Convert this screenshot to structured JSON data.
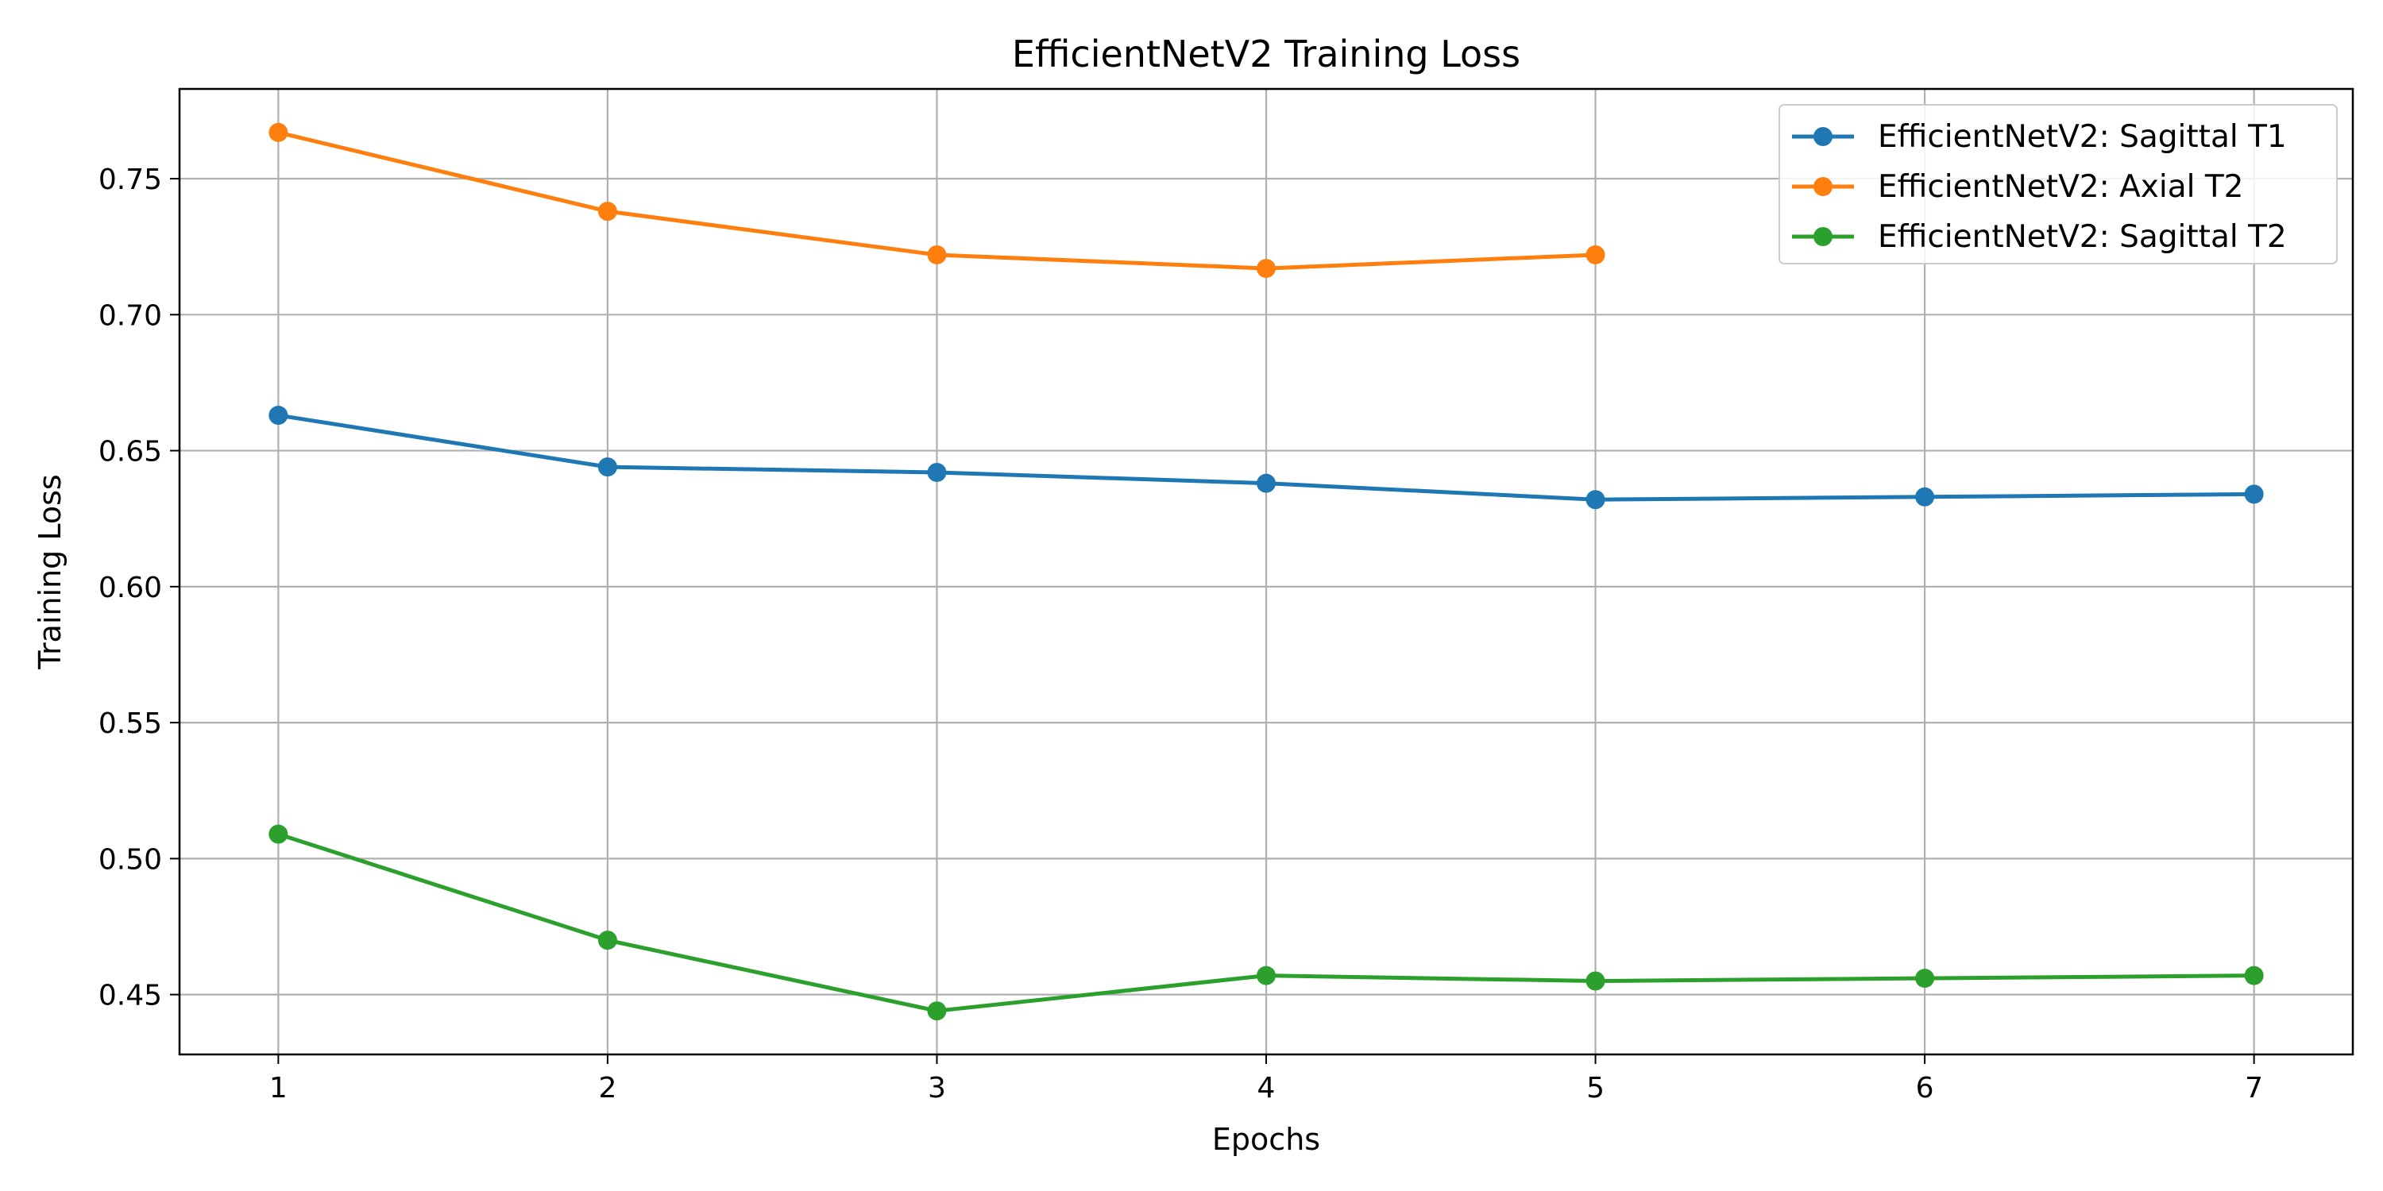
{
  "chart_data": {
    "type": "line",
    "title": "EfficientNetV2 Training Loss",
    "xlabel": "Epochs",
    "ylabel": "Training Loss",
    "xlim": [
      0.7,
      7.3
    ],
    "ylim": [
      0.428,
      0.783
    ],
    "xticks": [
      1,
      2,
      3,
      4,
      5,
      6,
      7
    ],
    "yticks": [
      0.45,
      0.5,
      0.55,
      0.6,
      0.65,
      0.7,
      0.75
    ],
    "ytick_labels": [
      "0.45",
      "0.50",
      "0.55",
      "0.60",
      "0.65",
      "0.70",
      "0.75"
    ],
    "grid": true,
    "legend_position": "top-right",
    "series": [
      {
        "name": "EfficientNetV2: Sagittal T1",
        "color": "#1f77b4",
        "x": [
          1,
          2,
          3,
          4,
          5,
          6,
          7
        ],
        "values": [
          0.663,
          0.644,
          0.642,
          0.638,
          0.632,
          0.633,
          0.634
        ]
      },
      {
        "name": "EfficientNetV2: Axial T2",
        "color": "#ff7f0e",
        "x": [
          1,
          2,
          3,
          4,
          5
        ],
        "values": [
          0.767,
          0.738,
          0.722,
          0.717,
          0.722
        ]
      },
      {
        "name": "EfficientNetV2: Sagittal T2",
        "color": "#2ca02c",
        "x": [
          1,
          2,
          3,
          4,
          5,
          6,
          7
        ],
        "values": [
          0.509,
          0.47,
          0.444,
          0.457,
          0.455,
          0.456,
          0.457
        ]
      }
    ]
  }
}
